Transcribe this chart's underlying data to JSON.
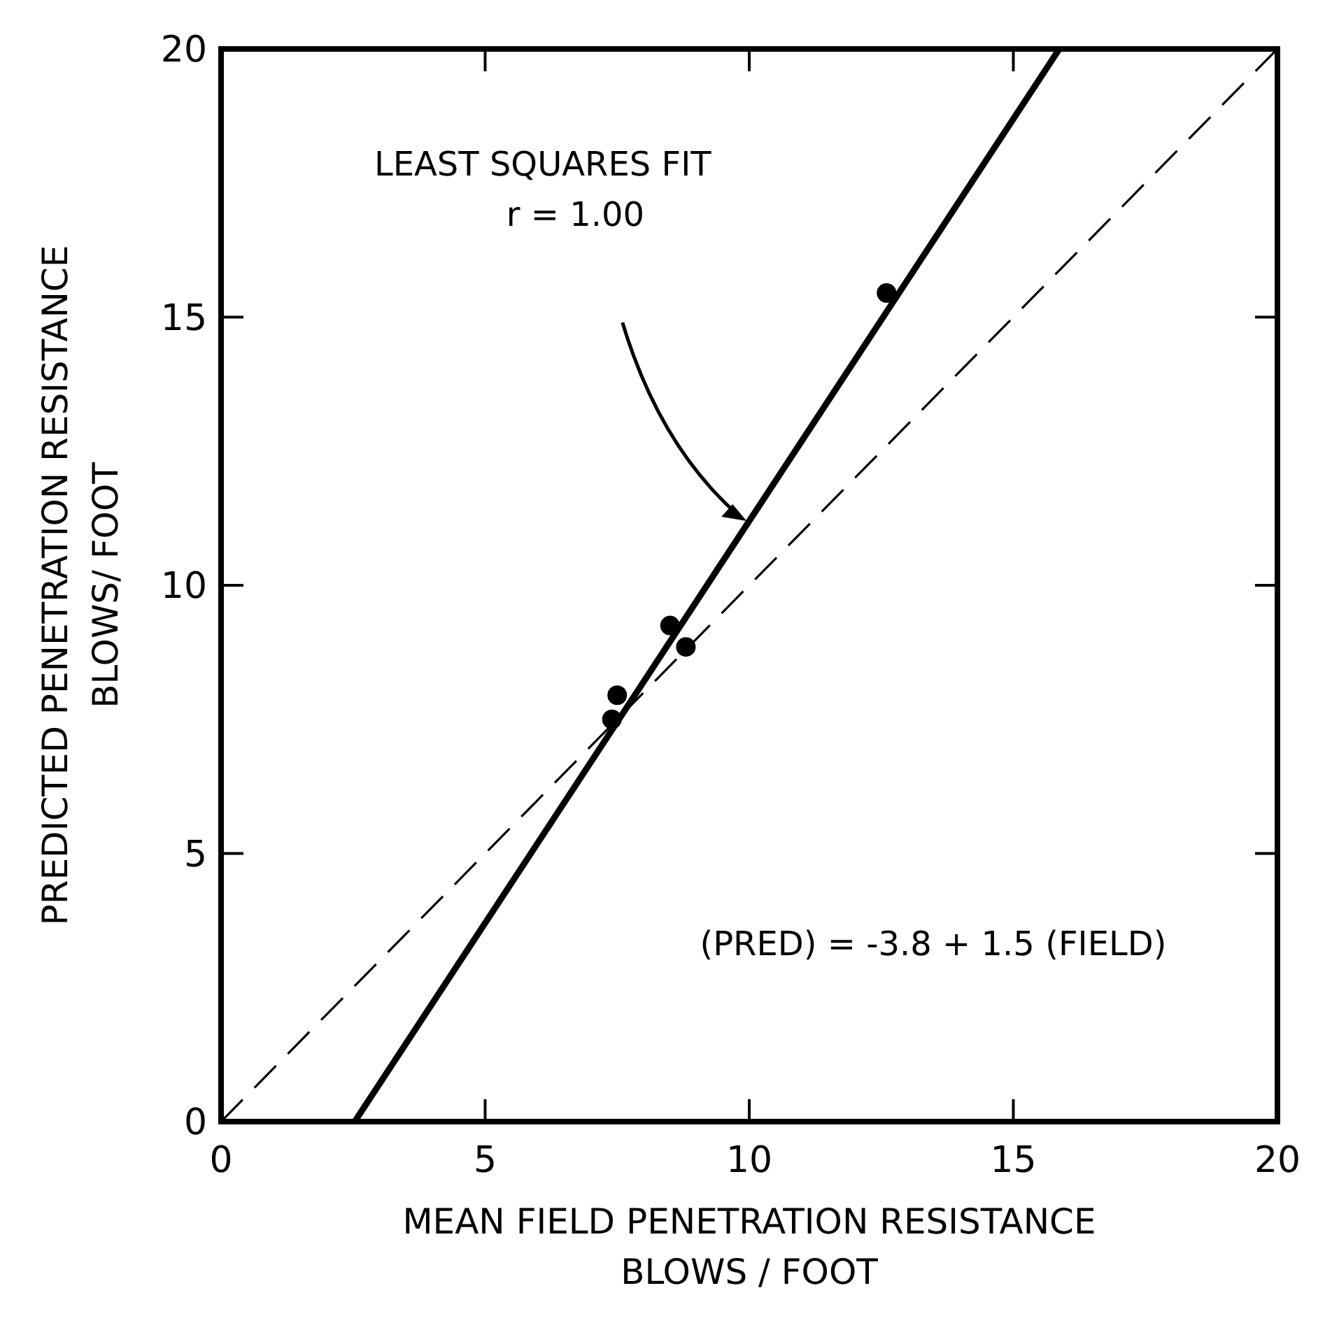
{
  "chart_data": {
    "type": "scatter",
    "xlabel": "MEAN FIELD PENETRATION RESISTANCE\nBLOWS / FOOT",
    "ylabel": "PREDICTED PENETRATION RESISTANCE\nBLOWS/ FOOT",
    "xlim": [
      0,
      20
    ],
    "ylim": [
      0,
      20
    ],
    "xticks": [
      0,
      5,
      10,
      15,
      20
    ],
    "yticks": [
      0,
      5,
      10,
      15,
      20
    ],
    "grid": false,
    "series": [
      {
        "color": "#000000",
        "marker": "circle",
        "x": [
          7.4,
          7.5,
          8.5,
          8.8,
          12.6
        ],
        "values": [
          7.5,
          7.95,
          9.25,
          8.85,
          15.45
        ]
      },
      {
        "type": "line",
        "color": "#000000",
        "line_style": "solid",
        "x": [
          2.53,
          15.87
        ],
        "values": [
          0,
          20
        ]
      },
      {
        "type": "line",
        "color": "#000000",
        "line_style": "dashed",
        "x": [
          0,
          20
        ],
        "values": [
          0,
          20
        ]
      }
    ],
    "annotations": [
      "LEAST SQUARES FIT\nr = 1.00",
      "(PRED) = -3.8 + 1.5 (FIELD)"
    ]
  }
}
